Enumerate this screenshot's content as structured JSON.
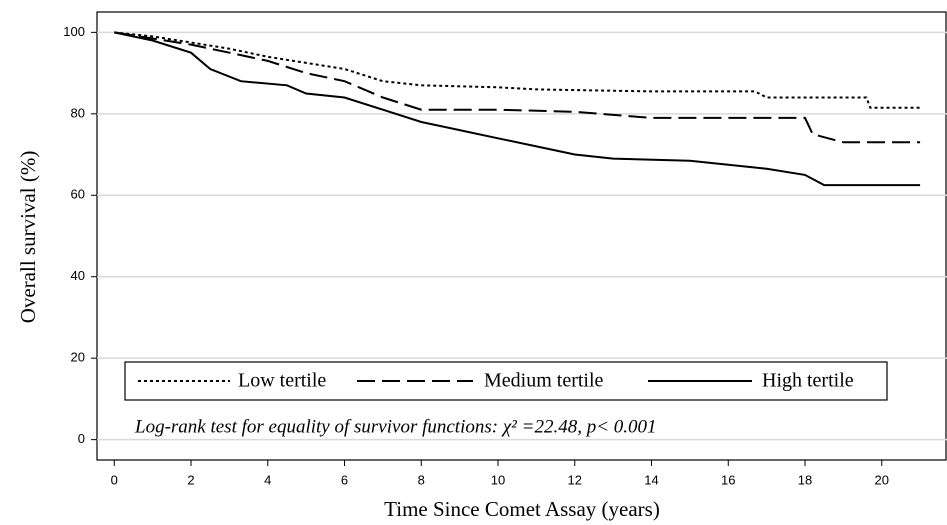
{
  "chart_data": {
    "type": "line",
    "step": true,
    "xlabel": "Time Since Comet Assay (years)",
    "ylabel": "Overall survival (%)",
    "annotation": "Log-rank test for equality of survivor functions: χ² =22.48, p< 0.001",
    "xlim": [
      -0.45,
      21.7
    ],
    "xticks": [
      0,
      2,
      4,
      6,
      8,
      10,
      12,
      14,
      16,
      18,
      20
    ],
    "ylim": [
      -5,
      105
    ],
    "yticks": [
      0,
      20,
      40,
      60,
      80,
      100
    ],
    "grid": true,
    "series": [
      {
        "name": "Low tertile",
        "color": "#000000",
        "dash": "3,3",
        "x": [
          0,
          1,
          2,
          3,
          4,
          5,
          6,
          7,
          8,
          10,
          11,
          14,
          16.7,
          17,
          19.6,
          19.7,
          21
        ],
        "values": [
          100,
          99,
          97.5,
          96,
          94,
          92.5,
          91,
          88,
          87,
          86.5,
          86,
          85.5,
          85.5,
          84,
          84,
          81.5,
          81.5
        ]
      },
      {
        "name": "Medium tertile",
        "color": "#000000",
        "dash": "18,7",
        "x": [
          0,
          1,
          2,
          3,
          4,
          5,
          6,
          7,
          8,
          10,
          12,
          14,
          18,
          18.2,
          19,
          21
        ],
        "values": [
          100,
          98.5,
          97,
          95,
          93,
          90,
          88,
          84,
          81,
          81,
          80.5,
          79,
          79,
          75,
          73,
          73
        ]
      },
      {
        "name": "High tertile",
        "color": "#000000",
        "dash": "",
        "x": [
          0,
          1,
          2,
          2.5,
          3.3,
          4.5,
          5,
          6,
          7,
          8,
          9,
          10,
          11,
          12,
          13,
          15,
          16,
          17,
          18,
          18.5,
          21
        ],
        "values": [
          100,
          98,
          95,
          91,
          88,
          87,
          85,
          84,
          81,
          78,
          76,
          74,
          72,
          70,
          69,
          68.5,
          67.5,
          66.5,
          65,
          62.5,
          62.5
        ]
      }
    ]
  }
}
